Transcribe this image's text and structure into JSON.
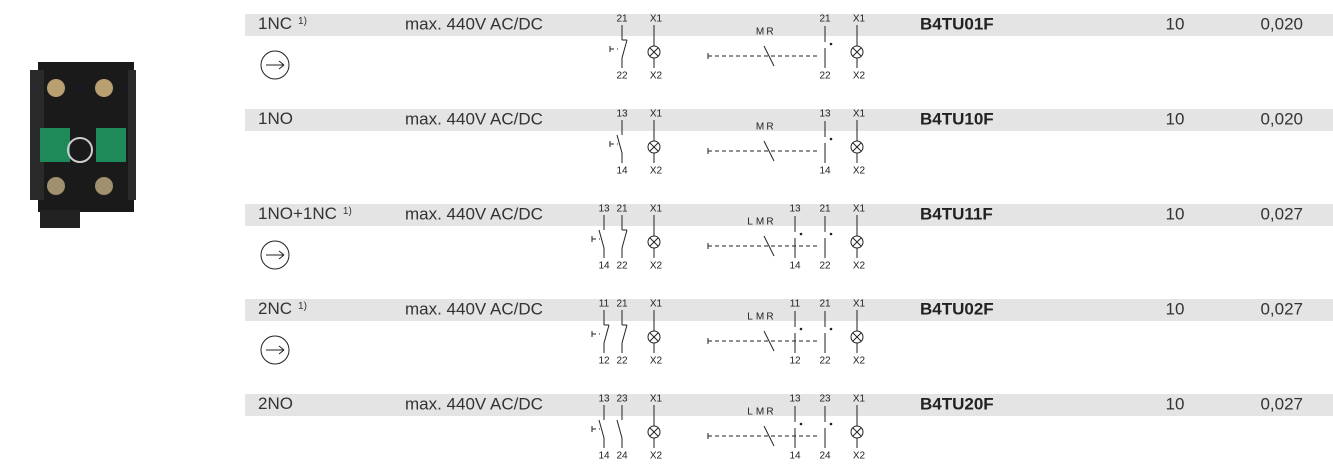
{
  "rows": [
    {
      "contacts": "1NC",
      "note": "1)",
      "voltage": "max. 440V AC/DC",
      "return_arrow": true,
      "symbol": {
        "contacts": [
          {
            "top": "21",
            "bottom": "22",
            "nc": true
          }
        ],
        "lamp": {
          "top": "X1",
          "bottom": "X2"
        }
      },
      "diagram": {
        "positions": [
          "M",
          "R"
        ],
        "contacts": [
          {
            "top": "21",
            "bottom": "22"
          }
        ],
        "lamp": {
          "top": "X1",
          "bottom": "X2"
        }
      },
      "part": "B4TU01F",
      "quantity": "10",
      "weight": "0,020"
    },
    {
      "contacts": "1NO",
      "note": null,
      "voltage": "max. 440V AC/DC",
      "return_arrow": false,
      "symbol": {
        "contacts": [
          {
            "top": "13",
            "bottom": "14",
            "nc": false
          }
        ],
        "lamp": {
          "top": "X1",
          "bottom": "X2"
        }
      },
      "diagram": {
        "positions": [
          "M",
          "R"
        ],
        "contacts": [
          {
            "top": "13",
            "bottom": "14"
          }
        ],
        "lamp": {
          "top": "X1",
          "bottom": "X2"
        }
      },
      "part": "B4TU10F",
      "quantity": "10",
      "weight": "0,020"
    },
    {
      "contacts": "1NO+1NC",
      "note": "1)",
      "voltage": "max. 440V AC/DC",
      "return_arrow": true,
      "symbol": {
        "contacts": [
          {
            "top": "13",
            "bottom": "14",
            "nc": false
          },
          {
            "top": "21",
            "bottom": "22",
            "nc": true
          }
        ],
        "lamp": {
          "top": "X1",
          "bottom": "X2"
        }
      },
      "diagram": {
        "positions": [
          "L",
          "M",
          "R"
        ],
        "contacts": [
          {
            "top": "13",
            "bottom": "14"
          },
          {
            "top": "21",
            "bottom": "22"
          }
        ],
        "lamp": {
          "top": "X1",
          "bottom": "X2"
        }
      },
      "part": "B4TU11F",
      "quantity": "10",
      "weight": "0,027"
    },
    {
      "contacts": "2NC",
      "note": "1)",
      "voltage": "max. 440V AC/DC",
      "return_arrow": true,
      "symbol": {
        "contacts": [
          {
            "top": "11",
            "bottom": "12",
            "nc": true
          },
          {
            "top": "21",
            "bottom": "22",
            "nc": true
          }
        ],
        "lamp": {
          "top": "X1",
          "bottom": "X2"
        }
      },
      "diagram": {
        "positions": [
          "L",
          "M",
          "R"
        ],
        "contacts": [
          {
            "top": "11",
            "bottom": "12"
          },
          {
            "top": "21",
            "bottom": "22"
          }
        ],
        "lamp": {
          "top": "X1",
          "bottom": "X2"
        }
      },
      "part": "B4TU02F",
      "quantity": "10",
      "weight": "0,027"
    },
    {
      "contacts": "2NO",
      "note": null,
      "voltage": "max. 440V AC/DC",
      "return_arrow": false,
      "symbol": {
        "contacts": [
          {
            "top": "13",
            "bottom": "14",
            "nc": false
          },
          {
            "top": "23",
            "bottom": "24",
            "nc": false
          }
        ],
        "lamp": {
          "top": "X1",
          "bottom": "X2"
        }
      },
      "diagram": {
        "positions": [
          "L",
          "M",
          "R"
        ],
        "contacts": [
          {
            "top": "13",
            "bottom": "14"
          },
          {
            "top": "23",
            "bottom": "24"
          }
        ],
        "lamp": {
          "top": "X1",
          "bottom": "X2"
        }
      },
      "part": "B4TU20F",
      "quantity": "10",
      "weight": "0,027"
    }
  ]
}
